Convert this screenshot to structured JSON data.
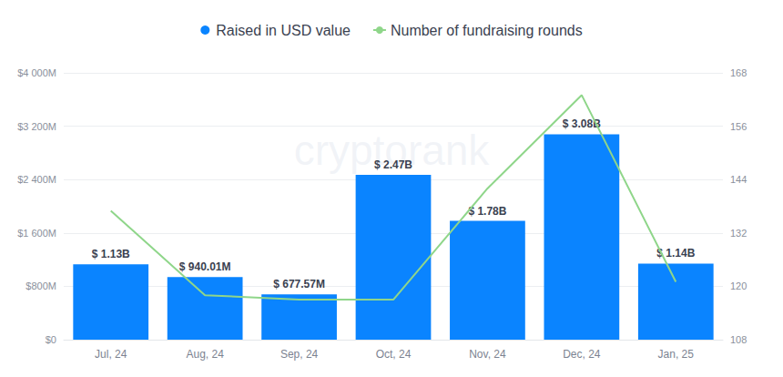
{
  "chart_data": {
    "type": "bar",
    "watermark": "cryptorank",
    "categories": [
      "Jul, 24",
      "Aug, 24",
      "Sep, 24",
      "Oct, 24",
      "Nov, 24",
      "Dec, 24",
      "Jan, 25"
    ],
    "series": [
      {
        "name": "Raised in USD value",
        "type": "bar",
        "color": "#0a84ff",
        "values": [
          1130,
          940.01,
          677.57,
          2470,
          1780,
          3080,
          1140
        ],
        "data_labels": true,
        "value_labels": [
          "$ 1.13B",
          "$ 940.01M",
          "$ 677.57M",
          "$ 2.47B",
          "$ 1.78B",
          "$ 3.08B",
          "$ 1.14B"
        ]
      },
      {
        "name": "Number of fundraising rounds",
        "type": "line",
        "color": "#8fd68a",
        "axis": "y2",
        "marker": "none",
        "values": [
          137,
          118,
          117,
          117,
          142,
          163,
          121
        ]
      }
    ],
    "ylim": [
      0,
      4000
    ],
    "yticks": [
      {
        "value": 0,
        "label": "$0"
      },
      {
        "value": 800,
        "label": "$800M"
      },
      {
        "value": 1600,
        "label": "$1 600M"
      },
      {
        "value": 2400,
        "label": "$2 400M"
      },
      {
        "value": 3200,
        "label": "$3 200M"
      },
      {
        "value": 4000,
        "label": "$4 000M"
      }
    ],
    "y2lim": [
      108,
      168
    ],
    "y2ticks": [
      108,
      120,
      132,
      144,
      156,
      168
    ],
    "grid": true,
    "legend": "top"
  }
}
